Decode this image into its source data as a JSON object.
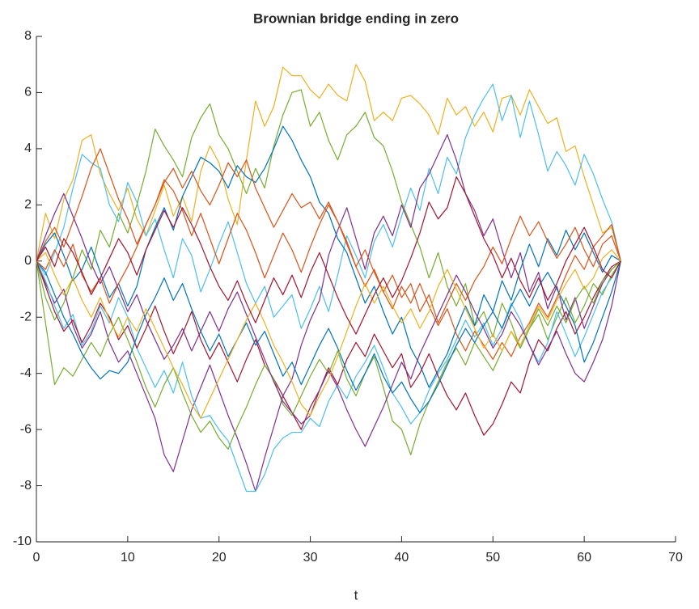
{
  "chart_data": {
    "type": "line",
    "title": "Brownian bridge ending in zero",
    "x_label": "t",
    "x": [
      0,
      1,
      2,
      3,
      4,
      5,
      6,
      7,
      8,
      9,
      10,
      11,
      12,
      13,
      14,
      15,
      16,
      17,
      18,
      19,
      20,
      21,
      22,
      23,
      24,
      25,
      26,
      27,
      28,
      29,
      30,
      31,
      32,
      33,
      34,
      35,
      36,
      37,
      38,
      39,
      40,
      41,
      42,
      43,
      44,
      45,
      46,
      47,
      48,
      49,
      50,
      51,
      52,
      53,
      54,
      55,
      56,
      57,
      58,
      59,
      60,
      61,
      62,
      63,
      64
    ],
    "xlim": [
      0,
      70
    ],
    "xticks": [
      0,
      10,
      20,
      30,
      40,
      50,
      60,
      70
    ],
    "ylim": [
      -10,
      8
    ],
    "yticks": [
      -10,
      -8,
      -6,
      -4,
      -2,
      0,
      2,
      4,
      6,
      8
    ],
    "series": [
      {
        "color": "#EDB120",
        "values": [
          0,
          1.7,
          0.8,
          2.2,
          2.9,
          4.3,
          4.5,
          3.1,
          2.4,
          1.8,
          2.6,
          1.5,
          0.9,
          1.8,
          2.7,
          1.6,
          2.3,
          1.4,
          3.2,
          4.1,
          3.5,
          2.2,
          1.3,
          3.6,
          5.7,
          4.8,
          5.5,
          6.9,
          6.6,
          6.6,
          6.1,
          5.8,
          6.3,
          5.9,
          5.7,
          7.0,
          6.4,
          5.0,
          5.3,
          5.0,
          5.8,
          5.9,
          5.6,
          5.2,
          4.5,
          5.8,
          5.2,
          5.5,
          4.8,
          5.3,
          4.6,
          5.8,
          5.9,
          5.2,
          6.1,
          5.5,
          4.9,
          5.1,
          3.9,
          4.1,
          3.0,
          2.0,
          1.0,
          1.2,
          0
        ]
      },
      {
        "color": "#4DBEEE",
        "values": [
          0,
          -0.5,
          0.3,
          1.2,
          2.6,
          3.8,
          3.5,
          3.3,
          2.0,
          1.4,
          2.8,
          2.1,
          0.9,
          1.5,
          0.4,
          -0.6,
          0.8,
          0.2,
          -1.1,
          -0.3,
          0.6,
          1.4,
          0.3,
          -0.8,
          -1.5,
          -0.9,
          -2.0,
          -1.6,
          -1.2,
          -2.4,
          -1.7,
          -0.9,
          -1.8,
          -0.5,
          0.9,
          0.2,
          -0.6,
          0.7,
          1.3,
          0.5,
          1.6,
          2.6,
          1.8,
          3.3,
          2.4,
          3.7,
          3.1,
          4.4,
          5.2,
          5.8,
          6.3,
          5.0,
          5.9,
          4.4,
          5.7,
          4.5,
          3.2,
          3.9,
          3.4,
          2.7,
          3.8,
          3.1,
          2.2,
          1.4,
          0
        ]
      },
      {
        "color": "#77AC30",
        "values": [
          0,
          -1.3,
          -2.1,
          -1.5,
          -0.6,
          0.4,
          -0.3,
          1.1,
          0.5,
          1.7,
          1.0,
          2.0,
          3.2,
          4.7,
          4.1,
          3.6,
          3.0,
          4.4,
          5.1,
          5.6,
          4.5,
          4.0,
          3.2,
          2.4,
          3.3,
          2.6,
          4.1,
          5.2,
          6.0,
          6.1,
          4.8,
          5.3,
          4.3,
          3.6,
          4.5,
          4.8,
          5.3,
          4.4,
          4.1,
          3.2,
          2.1,
          1.3,
          0.5,
          -0.6,
          0.3,
          -0.9,
          -1.6,
          -0.8,
          -2.3,
          -1.8,
          -2.7,
          -1.5,
          -2.2,
          -3.1,
          -2.4,
          -1.9,
          -2.8,
          -2.0,
          -1.3,
          -2.2,
          -1.6,
          -0.8,
          -1.2,
          -0.5,
          0
        ]
      },
      {
        "color": "#7E2F8E",
        "values": [
          0,
          -0.8,
          -1.5,
          -1.0,
          -2.3,
          -3.1,
          -2.6,
          -1.8,
          -2.9,
          -3.6,
          -3.2,
          -4.0,
          -4.8,
          -5.6,
          -6.9,
          -7.5,
          -6.4,
          -5.3,
          -4.5,
          -3.7,
          -4.6,
          -5.5,
          -6.3,
          -7.2,
          -8.2,
          -7.0,
          -5.9,
          -4.8,
          -4.2,
          -3.0,
          -2.1,
          -1.4,
          0.2,
          1.1,
          1.9,
          0.8,
          -0.3,
          1.0,
          1.6,
          0.9,
          2.0,
          1.2,
          2.6,
          3.1,
          3.8,
          4.5,
          3.6,
          2.4,
          1.8,
          0.9,
          1.5,
          0.4,
          -0.6,
          0.3,
          -1.1,
          -0.4,
          -1.7,
          -0.9,
          -2.1,
          -1.3,
          -2.4,
          -1.6,
          -0.8,
          -0.3,
          0
        ]
      },
      {
        "color": "#4DBEEE",
        "values": [
          0,
          -0.7,
          -1.6,
          -2.4,
          -1.9,
          -3.0,
          -2.5,
          -1.6,
          -2.2,
          -1.3,
          -2.0,
          -3.1,
          -3.8,
          -4.5,
          -3.9,
          -4.7,
          -3.6,
          -4.8,
          -5.6,
          -5.5,
          -6.0,
          -6.4,
          -7.3,
          -8.2,
          -8.2,
          -7.6,
          -6.7,
          -6.3,
          -6.1,
          -6.1,
          -5.6,
          -5.9,
          -5.0,
          -4.4,
          -4.9,
          -4.1,
          -3.6,
          -3.0,
          -3.8,
          -4.7,
          -5.2,
          -5.8,
          -5.4,
          -4.6,
          -4.0,
          -3.5,
          -2.8,
          -2.1,
          -2.7,
          -2.2,
          -3.0,
          -2.4,
          -1.5,
          -2.1,
          -3.0,
          -3.6,
          -2.9,
          -1.8,
          -2.6,
          -3.4,
          -2.7,
          -1.9,
          -1.1,
          -0.6,
          0
        ]
      },
      {
        "color": "#0072BD",
        "values": [
          0,
          0.6,
          1.0,
          0.2,
          -0.7,
          -0.3,
          0.5,
          -0.4,
          -1.3,
          -0.8,
          -1.6,
          -0.9,
          0.4,
          1.2,
          1.9,
          1.1,
          2.3,
          3.0,
          3.7,
          3.5,
          3.2,
          2.6,
          3.4,
          3.0,
          2.8,
          3.3,
          4.0,
          4.8,
          4.3,
          3.6,
          3.0,
          2.1,
          1.7,
          0.8,
          0.3,
          -0.6,
          -1.5,
          -0.9,
          -1.8,
          -2.6,
          -2.0,
          -3.1,
          -3.7,
          -4.5,
          -3.9,
          -3.3,
          -2.4,
          -1.6,
          -2.3,
          -1.2,
          -1.8,
          -0.7,
          -1.4,
          -0.3,
          0.6,
          -0.2,
          0.8,
          0.2,
          1.1,
          0.4,
          1.0,
          0.3,
          -0.4,
          0.2,
          0
        ]
      },
      {
        "color": "#A2142F",
        "values": [
          0,
          -0.9,
          -1.8,
          -2.5,
          -2.1,
          -2.9,
          -2.3,
          -1.5,
          -2.0,
          -2.8,
          -2.3,
          -3.1,
          -2.4,
          -1.6,
          -2.5,
          -3.3,
          -2.6,
          -1.8,
          -2.8,
          -3.5,
          -2.9,
          -3.6,
          -4.3,
          -3.5,
          -2.8,
          -3.7,
          -4.2,
          -4.8,
          -5.4,
          -6.0,
          -5.2,
          -4.6,
          -3.8,
          -4.4,
          -3.5,
          -2.9,
          -3.4,
          -2.6,
          -3.2,
          -3.8,
          -3.3,
          -4.5,
          -4.0,
          -3.3,
          -4.1,
          -4.8,
          -5.3,
          -4.7,
          -5.5,
          -6.2,
          -5.8,
          -5.1,
          -4.3,
          -4.7,
          -3.6,
          -2.8,
          -3.2,
          -2.4,
          -1.8,
          -2.6,
          -2.0,
          -1.3,
          -0.7,
          -0.2,
          0
        ]
      },
      {
        "color": "#77AC30",
        "values": [
          0,
          -2.2,
          -4.4,
          -3.8,
          -4.1,
          -3.5,
          -2.9,
          -3.4,
          -2.6,
          -2.0,
          -2.8,
          -3.6,
          -4.5,
          -5.2,
          -4.4,
          -3.8,
          -4.7,
          -5.5,
          -6.1,
          -5.7,
          -6.3,
          -6.7,
          -5.9,
          -5.2,
          -4.4,
          -3.7,
          -4.2,
          -5.1,
          -5.5,
          -4.8,
          -4.1,
          -3.5,
          -4.0,
          -3.2,
          -4.2,
          -4.8,
          -4.0,
          -3.4,
          -4.5,
          -5.7,
          -6.0,
          -6.9,
          -5.8,
          -5.0,
          -4.3,
          -3.6,
          -3.1,
          -3.7,
          -2.9,
          -3.4,
          -3.9,
          -3.2,
          -2.5,
          -3.1,
          -2.4,
          -1.7,
          -2.3,
          -1.6,
          -2.2,
          -1.4,
          -0.9,
          -1.5,
          -0.7,
          -0.3,
          0
        ]
      },
      {
        "color": "#D95319",
        "values": [
          0,
          0.7,
          1.2,
          0.5,
          1.4,
          2.3,
          3.3,
          4.0,
          3.1,
          2.2,
          1.5,
          0.6,
          1.3,
          2.0,
          2.9,
          2.5,
          1.8,
          0.9,
          1.7,
          0.8,
          -0.1,
          0.8,
          1.7,
          1.1,
          0.3,
          -0.6,
          0.2,
          1.0,
          0.4,
          -0.4,
          0.5,
          1.3,
          2.0,
          1.4,
          0.7,
          -0.2,
          -0.9,
          -0.3,
          -1.1,
          -1.7,
          -0.9,
          -1.5,
          -0.8,
          -1.6,
          -2.3,
          -1.7,
          -2.6,
          -3.2,
          -2.5,
          -3.0,
          -3.5,
          -2.9,
          -3.4,
          -2.7,
          -2.2,
          -1.5,
          -2.0,
          -1.3,
          -0.5,
          0.2,
          -0.3,
          0.5,
          0.9,
          1.3,
          0
        ]
      },
      {
        "color": "#7E2F8E",
        "values": [
          0,
          0.9,
          1.7,
          2.4,
          1.6,
          0.8,
          -0.1,
          -0.8,
          -0.2,
          -1.0,
          -1.8,
          -1.2,
          -2.1,
          -2.8,
          -3.5,
          -3.0,
          -2.4,
          -3.2,
          -2.5,
          -1.8,
          -2.5,
          -1.7,
          -1.1,
          -1.9,
          -2.7,
          -3.5,
          -4.3,
          -5.0,
          -5.4,
          -5.8,
          -5.5,
          -4.6,
          -3.9,
          -4.5,
          -5.3,
          -6.0,
          -6.6,
          -5.9,
          -5.2,
          -4.4,
          -3.6,
          -4.2,
          -3.3,
          -2.6,
          -1.9,
          -1.2,
          -0.5,
          -1.1,
          -1.8,
          -2.4,
          -3.1,
          -2.6,
          -1.8,
          -2.3,
          -3.0,
          -3.7,
          -3.1,
          -2.5,
          -3.3,
          -4.0,
          -4.3,
          -3.6,
          -2.8,
          -1.6,
          0
        ]
      },
      {
        "color": "#0072BD",
        "values": [
          0,
          -0.4,
          -1.2,
          -2.0,
          -2.6,
          -3.3,
          -3.8,
          -4.2,
          -3.9,
          -4.0,
          -3.6,
          -2.7,
          -1.9,
          -1.3,
          -0.6,
          -1.4,
          -0.8,
          -1.7,
          -2.5,
          -3.2,
          -2.6,
          -3.4,
          -2.8,
          -2.2,
          -3.0,
          -2.5,
          -3.3,
          -4.1,
          -3.6,
          -4.4,
          -3.7,
          -3.0,
          -2.4,
          -3.1,
          -3.9,
          -4.6,
          -4.0,
          -3.3,
          -4.1,
          -4.7,
          -4.3,
          -4.9,
          -5.4,
          -5.0,
          -4.4,
          -3.7,
          -3.0,
          -2.4,
          -2.9,
          -2.3,
          -1.8,
          -2.4,
          -1.6,
          -1.0,
          -1.6,
          -0.9,
          -0.4,
          -1.0,
          -1.6,
          -2.3,
          -3.6,
          -2.9,
          -2.0,
          -1.1,
          0
        ]
      },
      {
        "color": "#D95319",
        "values": [
          0,
          -0.3,
          0.4,
          -0.2,
          0.6,
          -0.5,
          -1.1,
          -0.6,
          -1.5,
          -0.8,
          -0.2,
          0.5,
          1.3,
          2.0,
          2.8,
          3.3,
          2.6,
          3.2,
          2.5,
          2.0,
          2.7,
          3.5,
          3.0,
          3.6,
          2.6,
          1.9,
          1.2,
          1.8,
          2.4,
          1.9,
          2.1,
          1.5,
          2.1,
          1.4,
          0.6,
          -0.2,
          0.4,
          -0.4,
          -1.1,
          -0.5,
          -1.3,
          -0.8,
          -1.8,
          -1.2,
          -2.2,
          -1.5,
          -0.8,
          -1.4,
          -0.7,
          -0.2,
          0.5,
          -0.1,
          0.8,
          1.6,
          0.9,
          1.4,
          0.7,
          0.1,
          0.6,
          1.2,
          0.4,
          -0.2,
          0.6,
          0.9,
          0
        ]
      },
      {
        "color": "#EDB120",
        "values": [
          0,
          0.3,
          -0.5,
          -1.2,
          -0.6,
          -1.4,
          -2.0,
          -1.3,
          -2.1,
          -2.7,
          -2.0,
          -2.5,
          -1.7,
          -2.4,
          -3.1,
          -3.8,
          -4.4,
          -5.1,
          -5.6,
          -4.9,
          -4.2,
          -3.5,
          -2.8,
          -2.1,
          -1.5,
          -2.2,
          -3.0,
          -3.6,
          -4.3,
          -5.1,
          -5.5,
          -4.8,
          -4.2,
          -3.4,
          -2.5,
          -1.6,
          -0.8,
          -1.5,
          -0.9,
          -1.6,
          -2.2,
          -1.7,
          -2.4,
          -1.8,
          -0.9,
          -0.3,
          -1.0,
          -1.7,
          -2.4,
          -3.1,
          -2.6,
          -3.2,
          -2.5,
          -3.0,
          -2.3,
          -1.6,
          -2.1,
          -1.4,
          -0.8,
          -0.3,
          -1.0,
          -0.6,
          0.1,
          0.4,
          0
        ]
      },
      {
        "color": "#A2142F",
        "values": [
          0,
          0.5,
          -0.2,
          0.8,
          0.3,
          -0.4,
          -1.2,
          -0.6,
          0.1,
          0.8,
          0.3,
          -0.5,
          0.4,
          1.1,
          1.8,
          1.2,
          1.9,
          1.3,
          0.6,
          -0.2,
          -0.9,
          -1.4,
          -0.7,
          -1.5,
          -2.2,
          -1.4,
          -0.6,
          -1.2,
          -0.5,
          -1.3,
          -0.4,
          0.3,
          -0.5,
          -1.3,
          -2.0,
          -2.6,
          -1.9,
          -1.2,
          -0.6,
          -1.3,
          -0.7,
          0.1,
          1.0,
          2.1,
          1.5,
          1.9,
          3.0,
          2.4,
          1.6,
          0.8,
          0.2,
          -0.6,
          0.1,
          -0.7,
          -1.3,
          -0.6,
          -1.4,
          -0.8,
          0.0,
          0.6,
          1.2,
          0.5,
          -0.3,
          -0.6,
          0
        ]
      }
    ]
  }
}
